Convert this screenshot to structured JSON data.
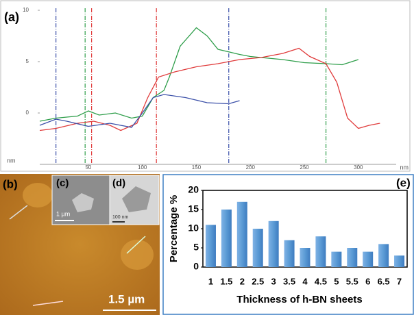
{
  "chart_data": [
    {
      "type": "line",
      "panel_label": "(a)",
      "x_label": "nm",
      "y_label": "nm",
      "xlim": [
        5,
        335
      ],
      "xticks": [
        50,
        100,
        150,
        200,
        250,
        300
      ],
      "ylim": [
        -5,
        10.2
      ],
      "yticks": [
        0,
        5,
        10
      ],
      "series": [
        {
          "color": "#2e9e4a",
          "x": [
            5,
            20,
            40,
            50,
            60,
            75,
            90,
            100,
            110,
            120,
            125,
            135,
            150,
            160,
            170,
            190,
            200,
            210,
            230,
            250,
            270,
            285,
            300
          ],
          "values": [
            -0.8,
            -0.5,
            -0.3,
            0.2,
            -0.2,
            0,
            -0.5,
            -0.3,
            1.5,
            2.2,
            3.5,
            6.5,
            8.3,
            7.5,
            6.2,
            5.7,
            5.5,
            5.4,
            5.2,
            4.9,
            4.8,
            4.7,
            5.2
          ]
        },
        {
          "color": "#e03a3a",
          "x": [
            5,
            20,
            40,
            55,
            70,
            80,
            95,
            105,
            115,
            130,
            150,
            170,
            190,
            210,
            230,
            245,
            255,
            270,
            280,
            290,
            300,
            310,
            320
          ],
          "values": [
            -1.7,
            -1.5,
            -1.0,
            -0.8,
            -1.2,
            -1.7,
            -1.0,
            1.5,
            3.5,
            4.0,
            4.5,
            4.8,
            5.2,
            5.4,
            5.8,
            6.3,
            5.5,
            4.8,
            3.0,
            -0.5,
            -1.5,
            -1.2,
            -1.0
          ]
        },
        {
          "color": "#3a4fa8",
          "x": [
            5,
            20,
            30,
            50,
            70,
            90,
            100,
            110,
            120,
            140,
            160,
            180,
            190
          ],
          "values": [
            -1.2,
            -0.6,
            -0.8,
            -1.3,
            -1.0,
            -1.4,
            0,
            1.5,
            1.8,
            1.5,
            1.0,
            0.9,
            1.2
          ]
        }
      ],
      "markers": [
        {
          "x": 20,
          "color": "#3a4fa8"
        },
        {
          "x": 180,
          "color": "#3a4fa8"
        },
        {
          "x": 47,
          "color": "#2e9e4a"
        },
        {
          "x": 270,
          "color": "#2e9e4a"
        },
        {
          "x": 53,
          "color": "#e03a3a"
        },
        {
          "x": 113,
          "color": "#e03a3a"
        }
      ]
    },
    {
      "type": "bar",
      "panel_label": "(e)",
      "x_label": "Thickness of h-BN sheets",
      "y_label": "Percentage %",
      "categories": [
        "1",
        "1.5",
        "2",
        "2.5",
        "3",
        "3.5",
        "4",
        "4.5",
        "5",
        "5.5",
        "6",
        "6.5",
        "7"
      ],
      "values": [
        11,
        15,
        17,
        10,
        12,
        7,
        5,
        8,
        4,
        5,
        4,
        6,
        3
      ],
      "color": "#5b9bd5",
      "ylim": [
        0,
        20
      ],
      "yticks": [
        0,
        5,
        10,
        15,
        20
      ]
    }
  ],
  "images": {
    "b": {
      "label": "(b)",
      "scale": "1.5 µm"
    },
    "c": {
      "label": "(c)",
      "scale": "1 µm"
    },
    "d": {
      "label": "(d)",
      "scale": "100 nm"
    }
  }
}
